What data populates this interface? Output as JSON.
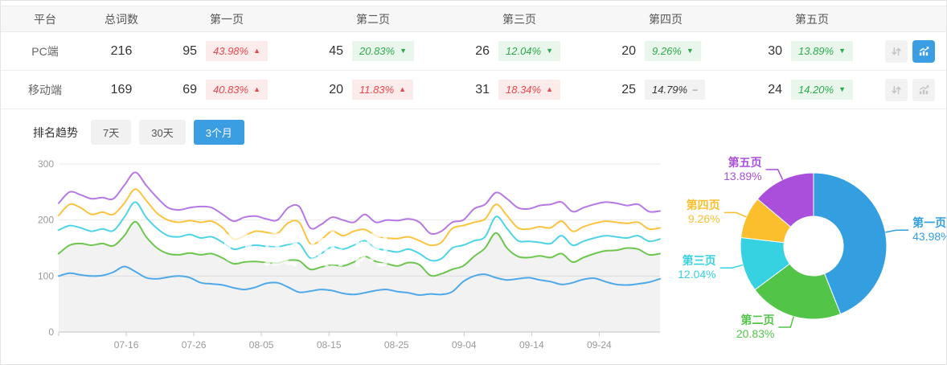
{
  "accent": "#3b9ee2",
  "table": {
    "headers": [
      "平台",
      "总词数",
      "第一页",
      "第二页",
      "第三页",
      "第四页",
      "第五页"
    ],
    "rows": [
      {
        "platform": "PC端",
        "total": "216",
        "selected": true,
        "pages": [
          {
            "count": "95",
            "pct": "43.98%",
            "trend": "up"
          },
          {
            "count": "45",
            "pct": "20.83%",
            "trend": "down"
          },
          {
            "count": "26",
            "pct": "12.04%",
            "trend": "down"
          },
          {
            "count": "20",
            "pct": "9.26%",
            "trend": "down"
          },
          {
            "count": "30",
            "pct": "13.89%",
            "trend": "down"
          }
        ],
        "chart_active": true
      },
      {
        "platform": "移动端",
        "total": "169",
        "selected": false,
        "pages": [
          {
            "count": "69",
            "pct": "40.83%",
            "trend": "up"
          },
          {
            "count": "20",
            "pct": "11.83%",
            "trend": "up"
          },
          {
            "count": "31",
            "pct": "18.34%",
            "trend": "up"
          },
          {
            "count": "25",
            "pct": "14.79%",
            "trend": "flat"
          },
          {
            "count": "24",
            "pct": "14.20%",
            "trend": "down"
          }
        ],
        "chart_active": false
      }
    ]
  },
  "trend_section": {
    "title": "排名趋势",
    "tabs": [
      {
        "label": "7天",
        "active": false
      },
      {
        "label": "30天",
        "active": false
      },
      {
        "label": "3个月",
        "active": true
      }
    ]
  },
  "watermark_text": "爱站网",
  "chart_data": [
    {
      "type": "line",
      "title": "排名趋势 3个月",
      "ylim": [
        0,
        300
      ],
      "y_ticks": [
        0,
        100,
        200,
        300
      ],
      "x_ticks": [
        "07-16",
        "07-26",
        "08-05",
        "08-15",
        "08-25",
        "09-04",
        "09-14",
        "09-24"
      ],
      "grid": true,
      "fill_series": "第二页",
      "fill_color": "rgba(0,0,0,0.05)",
      "series": [
        {
          "name": "第一页",
          "color": "#4fa9e8",
          "values": [
            100,
            105,
            102,
            100,
            101,
            107,
            117,
            108,
            97,
            95,
            98,
            100,
            97,
            88,
            86,
            84,
            79,
            76,
            80,
            87,
            88,
            80,
            71,
            73,
            76,
            74,
            69,
            67,
            70,
            74,
            76,
            72,
            70,
            66,
            68,
            67,
            72,
            90,
            100,
            103,
            97,
            93,
            95,
            97,
            93,
            90,
            85,
            88,
            94,
            96,
            90,
            85,
            84,
            86,
            89,
            95
          ]
        },
        {
          "name": "第二页",
          "color": "#6cc64f",
          "values": [
            140,
            155,
            158,
            155,
            158,
            154,
            172,
            197,
            170,
            150,
            140,
            138,
            141,
            138,
            140,
            132,
            122,
            125,
            126,
            124,
            123,
            128,
            127,
            112,
            116,
            120,
            118,
            125,
            135,
            126,
            122,
            118,
            124,
            120,
            101,
            104,
            112,
            118,
            135,
            150,
            177,
            150,
            135,
            133,
            136,
            133,
            140,
            125,
            133,
            140,
            145,
            146,
            150,
            148,
            138,
            140
          ]
        },
        {
          "name": "第三页",
          "color": "#4ed4e6",
          "values": [
            182,
            190,
            186,
            180,
            184,
            181,
            205,
            232,
            205,
            185,
            172,
            170,
            174,
            168,
            170,
            160,
            148,
            152,
            155,
            153,
            152,
            156,
            158,
            132,
            140,
            152,
            148,
            155,
            163,
            150,
            146,
            143,
            148,
            140,
            128,
            131,
            150,
            155,
            163,
            170,
            206,
            185,
            163,
            162,
            160,
            158,
            172,
            155,
            162,
            168,
            172,
            170,
            168,
            172,
            162,
            166
          ]
        },
        {
          "name": "第四页",
          "color": "#fbc440",
          "values": [
            208,
            228,
            222,
            210,
            214,
            210,
            230,
            255,
            235,
            212,
            200,
            196,
            199,
            196,
            198,
            186,
            166,
            172,
            180,
            178,
            176,
            195,
            196,
            158,
            165,
            180,
            172,
            180,
            183,
            172,
            168,
            167,
            170,
            163,
            155,
            160,
            185,
            190,
            196,
            202,
            228,
            208,
            186,
            184,
            188,
            186,
            198,
            180,
            188,
            194,
            198,
            196,
            194,
            196,
            184,
            186
          ]
        },
        {
          "name": "第五页",
          "color": "#b678e2",
          "values": [
            230,
            250,
            245,
            238,
            240,
            238,
            262,
            285,
            262,
            240,
            222,
            218,
            222,
            224,
            222,
            210,
            198,
            205,
            207,
            202,
            200,
            222,
            224,
            186,
            192,
            205,
            200,
            196,
            210,
            196,
            200,
            199,
            202,
            196,
            176,
            180,
            196,
            200,
            220,
            228,
            249,
            238,
            222,
            220,
            226,
            228,
            232,
            215,
            222,
            228,
            232,
            230,
            226,
            228,
            215,
            216
          ]
        }
      ]
    },
    {
      "type": "pie",
      "donut": true,
      "labels": [
        "第一页",
        "第二页",
        "第三页",
        "第四页",
        "第五页"
      ],
      "values": [
        43.98,
        20.83,
        12.04,
        9.26,
        13.89
      ],
      "colors": [
        "#339fe0",
        "#52c549",
        "#36d2e2",
        "#fbbf2e",
        "#aa4fdb"
      ]
    }
  ]
}
